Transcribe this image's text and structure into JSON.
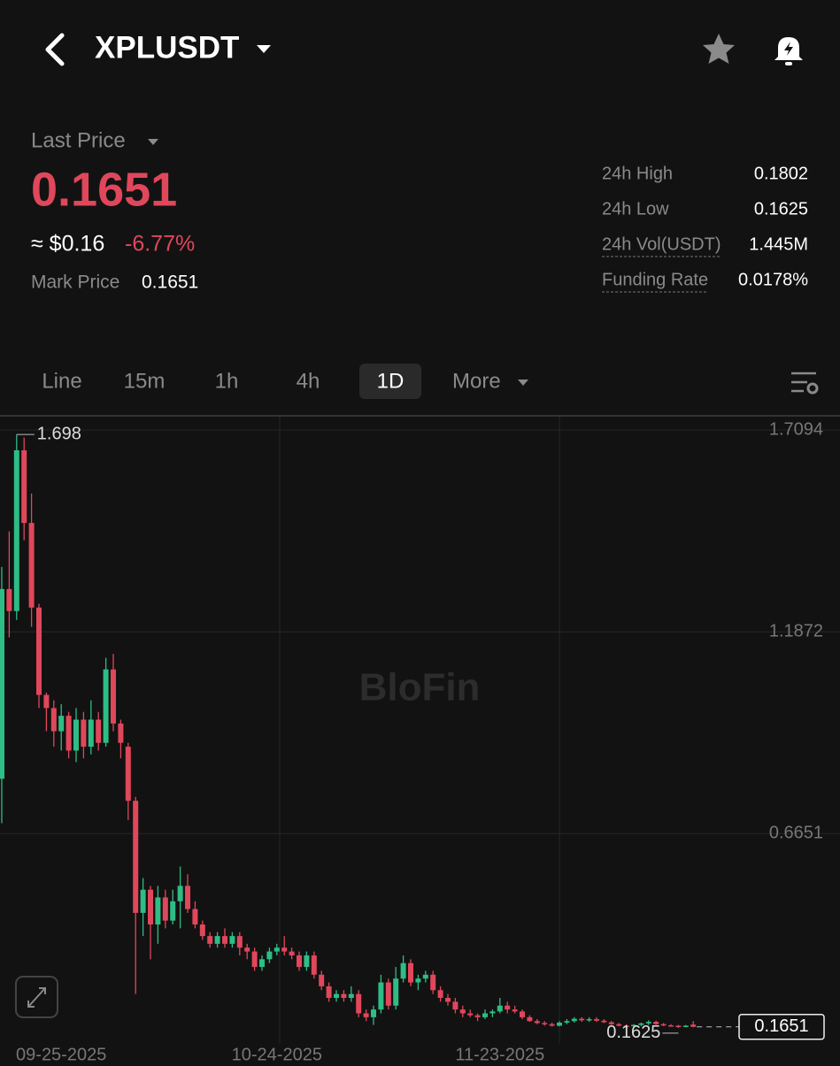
{
  "header": {
    "symbol": "XPLUSDT"
  },
  "ticker": {
    "last_price_label": "Last Price",
    "last_price": "0.1651",
    "approx": "≈ $0.16",
    "change": "-6.77%",
    "mark_price_label": "Mark Price",
    "mark_price": "0.1651"
  },
  "stats": [
    {
      "label": "24h High",
      "value": "0.1802"
    },
    {
      "label": "24h Low",
      "value": "0.1625"
    },
    {
      "label": "24h Vol(USDT)",
      "value": "1.445M"
    },
    {
      "label": "Funding Rate",
      "value": "0.0178%"
    }
  ],
  "tabs": [
    "Line",
    "15m",
    "1h",
    "4h",
    "1D",
    "More"
  ],
  "watermark": "BloFin",
  "chart_data": {
    "type": "candlestick",
    "categories": [
      null,
      null,
      null,
      null,
      null,
      null,
      null,
      null,
      "09-25-2025",
      null,
      null,
      null,
      null,
      null,
      null,
      null,
      null,
      null,
      null,
      null,
      null,
      null,
      null,
      null,
      null,
      null,
      null,
      null,
      null,
      null,
      null,
      null,
      null,
      null,
      null,
      null,
      null,
      "10-24-2025",
      null,
      null,
      null,
      null,
      null,
      null,
      null,
      null,
      null,
      null,
      null,
      null,
      null,
      null,
      null,
      null,
      null,
      null,
      null,
      null,
      null,
      null,
      null,
      null,
      null,
      null,
      null,
      null,
      null,
      "11-23-2025",
      null,
      null,
      null,
      null,
      null,
      null,
      null,
      null,
      null,
      null,
      null,
      null,
      null,
      null,
      null,
      null,
      null,
      null,
      null,
      null,
      null,
      null,
      null,
      null,
      null,
      null
    ],
    "open": [
      0.807,
      1.298,
      1.241,
      1.657,
      1.469,
      1.25,
      1.024,
      0.99,
      0.93,
      0.97,
      0.88,
      0.96,
      0.89,
      0.96,
      0.9,
      1.09,
      0.95,
      0.89,
      0.75,
      0.46,
      0.52,
      0.43,
      0.5,
      0.44,
      0.49,
      0.53,
      0.47,
      0.43,
      0.4,
      0.38,
      0.4,
      0.38,
      0.4,
      0.37,
      0.36,
      0.32,
      0.34,
      0.36,
      0.37,
      0.36,
      0.35,
      0.32,
      0.35,
      0.3,
      0.27,
      0.24,
      0.25,
      0.24,
      0.25,
      0.2,
      0.19,
      0.21,
      0.28,
      0.22,
      0.29,
      0.33,
      0.28,
      0.29,
      0.3,
      0.26,
      0.24,
      0.23,
      0.21,
      0.2,
      0.195,
      0.19,
      0.2,
      0.205,
      0.22,
      0.21,
      0.205,
      0.19,
      0.18,
      0.175,
      0.172,
      0.168,
      0.176,
      0.18,
      0.186,
      0.182,
      0.185,
      0.181,
      0.177,
      0.172,
      0.168,
      0.167,
      0.17,
      0.174,
      0.178,
      0.172,
      0.169,
      0.168,
      0.166,
      0.171
    ],
    "high": [
      1.355,
      1.447,
      1.698,
      1.6899,
      1.545,
      1.26,
      1.03,
      1.01,
      1.0,
      0.98,
      0.99,
      0.98,
      1.01,
      0.98,
      1.12,
      1.13,
      0.96,
      0.9,
      0.76,
      0.55,
      0.53,
      0.53,
      0.52,
      0.52,
      0.58,
      0.56,
      0.49,
      0.44,
      0.41,
      0.41,
      0.42,
      0.41,
      0.41,
      0.38,
      0.37,
      0.35,
      0.37,
      0.38,
      0.4,
      0.37,
      0.36,
      0.36,
      0.36,
      0.31,
      0.28,
      0.26,
      0.26,
      0.27,
      0.26,
      0.21,
      0.22,
      0.3,
      0.29,
      0.32,
      0.35,
      0.34,
      0.3,
      0.31,
      0.31,
      0.27,
      0.25,
      0.24,
      0.22,
      0.21,
      0.2,
      0.21,
      0.21,
      0.24,
      0.23,
      0.22,
      0.21,
      0.195,
      0.185,
      0.18,
      0.176,
      0.18,
      0.185,
      0.19,
      0.19,
      0.19,
      0.19,
      0.185,
      0.18,
      0.175,
      0.172,
      0.172,
      0.176,
      0.182,
      0.181,
      0.175,
      0.172,
      0.17,
      0.17,
      0.18
    ],
    "low": [
      0.692,
      1.173,
      1.218,
      1.424,
      1.2,
      0.99,
      0.93,
      0.89,
      0.88,
      0.86,
      0.85,
      0.86,
      0.87,
      0.88,
      0.89,
      0.93,
      0.86,
      0.7,
      0.25,
      0.4,
      0.34,
      0.38,
      0.42,
      0.43,
      0.42,
      0.46,
      0.42,
      0.39,
      0.37,
      0.37,
      0.37,
      0.37,
      0.35,
      0.34,
      0.31,
      0.31,
      0.33,
      0.35,
      0.35,
      0.34,
      0.31,
      0.31,
      0.29,
      0.26,
      0.23,
      0.23,
      0.23,
      0.23,
      0.19,
      0.18,
      0.17,
      0.2,
      0.21,
      0.21,
      0.28,
      0.27,
      0.26,
      0.28,
      0.25,
      0.23,
      0.22,
      0.2,
      0.19,
      0.19,
      0.18,
      0.185,
      0.19,
      0.2,
      0.2,
      0.2,
      0.185,
      0.178,
      0.172,
      0.168,
      0.166,
      0.166,
      0.172,
      0.176,
      0.178,
      0.178,
      0.178,
      0.175,
      0.17,
      0.166,
      0.165,
      0.165,
      0.167,
      0.17,
      0.17,
      0.167,
      0.166,
      0.1625,
      0.164,
      0.164
    ],
    "close": [
      1.298,
      1.241,
      1.657,
      1.469,
      1.25,
      1.024,
      0.99,
      0.93,
      0.97,
      0.88,
      0.96,
      0.89,
      0.96,
      0.9,
      1.09,
      0.95,
      0.9,
      0.75,
      0.46,
      0.52,
      0.43,
      0.5,
      0.44,
      0.49,
      0.53,
      0.47,
      0.43,
      0.4,
      0.38,
      0.4,
      0.38,
      0.4,
      0.37,
      0.36,
      0.32,
      0.34,
      0.36,
      0.37,
      0.36,
      0.35,
      0.32,
      0.35,
      0.3,
      0.27,
      0.24,
      0.25,
      0.24,
      0.25,
      0.2,
      0.19,
      0.21,
      0.28,
      0.22,
      0.29,
      0.33,
      0.28,
      0.29,
      0.3,
      0.26,
      0.24,
      0.23,
      0.21,
      0.2,
      0.195,
      0.19,
      0.2,
      0.205,
      0.22,
      0.21,
      0.205,
      0.19,
      0.18,
      0.175,
      0.172,
      0.168,
      0.176,
      0.18,
      0.186,
      0.182,
      0.185,
      0.181,
      0.177,
      0.172,
      0.168,
      0.167,
      0.17,
      0.174,
      0.178,
      0.172,
      0.169,
      0.168,
      0.166,
      0.168,
      0.1651
    ],
    "up_color": "#2ebd85",
    "down_color": "#e0475b",
    "ylim": [
      0.121,
      1.744
    ],
    "yticks": [
      1.7094,
      1.1872,
      0.6651
    ],
    "grid": true
  }
}
